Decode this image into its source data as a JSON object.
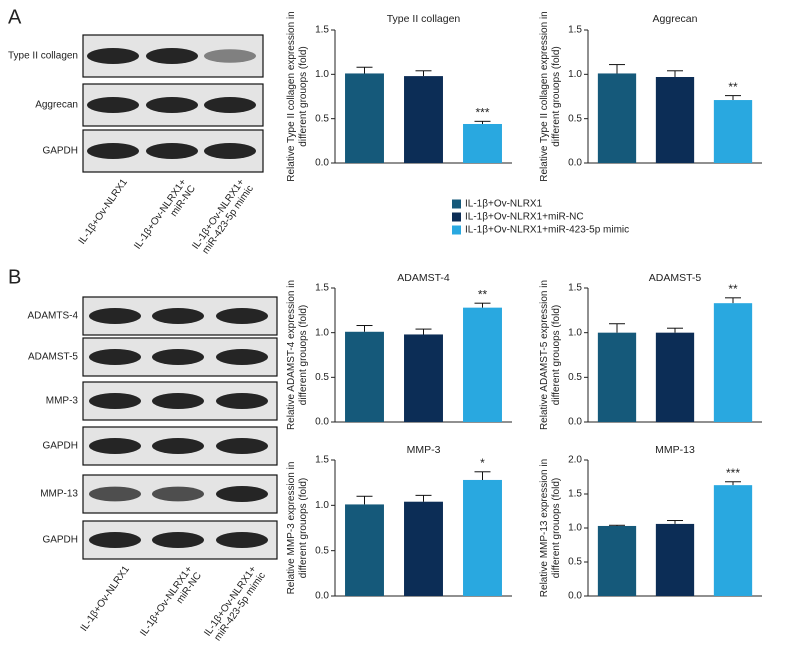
{
  "panels": [
    "A",
    "B"
  ],
  "legend": [
    {
      "name": "IL-1β+Ov-NLRX1",
      "color": "#15597a"
    },
    {
      "name": "IL-1β+Ov-NLRX1+miR-NC",
      "color": "#0c2d56"
    },
    {
      "name": "IL-1β+Ov-NLRX1+miR-423-5p mimic",
      "color": "#29a8e0"
    }
  ],
  "blots": [
    {
      "rows": [
        "Type II collagen",
        "Aggrecan",
        "GAPDH"
      ],
      "lanes": [
        [
          "IL-1β+Ov-NLRX1"
        ],
        [
          "IL-1β+Ov-NLRX1+",
          "miR-NC"
        ],
        [
          "IL-1β+Ov-NLRX1+",
          "miR-423-5p mimic"
        ]
      ]
    },
    {
      "rows": [
        "ADAMTS-4",
        "ADAMST-5",
        "MMP-3",
        "GAPDH",
        "MMP-13",
        "GAPDH"
      ],
      "lanes": [
        [
          "IL-1β+Ov-NLRX1"
        ],
        [
          "IL-1β+Ov-NLRX1+",
          "miR-NC"
        ],
        [
          "IL-1β+Ov-NLRX1+",
          "miR-423-5p mimic"
        ]
      ]
    }
  ],
  "chart_data": [
    {
      "type": "bar",
      "title": "Type II collagen",
      "ylabel": [
        "Relative Type II collagen expression in",
        "different grouops (fold)"
      ],
      "values": [
        1.01,
        0.98,
        0.44
      ],
      "errors": [
        0.07,
        0.06,
        0.03
      ],
      "significance": {
        "index": 2,
        "text": "***"
      },
      "ylim": [
        0,
        1.5
      ],
      "yticks": [
        {
          "value": 0,
          "label": "0.0"
        },
        0.5,
        {
          "value": 1,
          "label": "1.0"
        },
        1.5
      ]
    },
    {
      "type": "bar",
      "title": "Aggrecan",
      "ylabel": [
        "Relative Type II collagen expression in",
        "different grouops (fold)"
      ],
      "values": [
        1.01,
        0.97,
        0.71
      ],
      "errors": [
        0.1,
        0.07,
        0.05
      ],
      "significance": {
        "index": 2,
        "text": "**"
      },
      "ylim": [
        0,
        1.5
      ],
      "yticks": [
        {
          "value": 0,
          "label": "0.0"
        },
        0.5,
        {
          "value": 1,
          "label": "1.0"
        },
        1.5
      ]
    },
    {
      "type": "bar",
      "title": "ADAMST-4",
      "ylabel": [
        "Relative ADAMST-4 expression in",
        "different grouops (fold)"
      ],
      "values": [
        1.01,
        0.98,
        1.28
      ],
      "errors": [
        0.07,
        0.06,
        0.05
      ],
      "significance": {
        "index": 2,
        "text": "**"
      },
      "ylim": [
        0,
        1.5
      ],
      "yticks": [
        {
          "value": 0,
          "label": "0.0"
        },
        0.5,
        {
          "value": 1,
          "label": "1.0"
        },
        1.5
      ]
    },
    {
      "type": "bar",
      "title": "ADAMST-5",
      "ylabel": [
        "Relative ADAMST-5 expression in",
        "different grouops (fold)"
      ],
      "values": [
        1.0,
        1.0,
        1.33
      ],
      "errors": [
        0.1,
        0.05,
        0.06
      ],
      "significance": {
        "index": 2,
        "text": "**"
      },
      "ylim": [
        0,
        1.5
      ],
      "yticks": [
        {
          "value": 0,
          "label": "0.0"
        },
        0.5,
        {
          "value": 1,
          "label": "1.0"
        },
        1.5
      ]
    },
    {
      "type": "bar",
      "title": "MMP-3",
      "ylabel": [
        "Relative MMP-3 expression in",
        "different grouops (fold)"
      ],
      "values": [
        1.01,
        1.04,
        1.28
      ],
      "errors": [
        0.09,
        0.07,
        0.09
      ],
      "significance": {
        "index": 2,
        "text": "*"
      },
      "ylim": [
        0,
        1.5
      ],
      "yticks": [
        {
          "value": 0,
          "label": "0.0"
        },
        0.5,
        {
          "value": 1,
          "label": "1.0"
        },
        1.5
      ]
    },
    {
      "type": "bar",
      "title": "MMP-13",
      "ylabel": [
        "Relative MMP-13 expression in",
        "different grouops (fold)"
      ],
      "values": [
        1.03,
        1.06,
        1.63
      ],
      "errors": [
        0.01,
        0.05,
        0.05
      ],
      "significance": {
        "index": 2,
        "text": "***"
      },
      "ylim": [
        0,
        2
      ],
      "yticks": [
        {
          "value": 0,
          "label": "0.0"
        },
        0.5,
        {
          "value": 1,
          "label": "1.0"
        },
        1.5,
        {
          "value": 2,
          "label": "2.0"
        }
      ]
    }
  ]
}
